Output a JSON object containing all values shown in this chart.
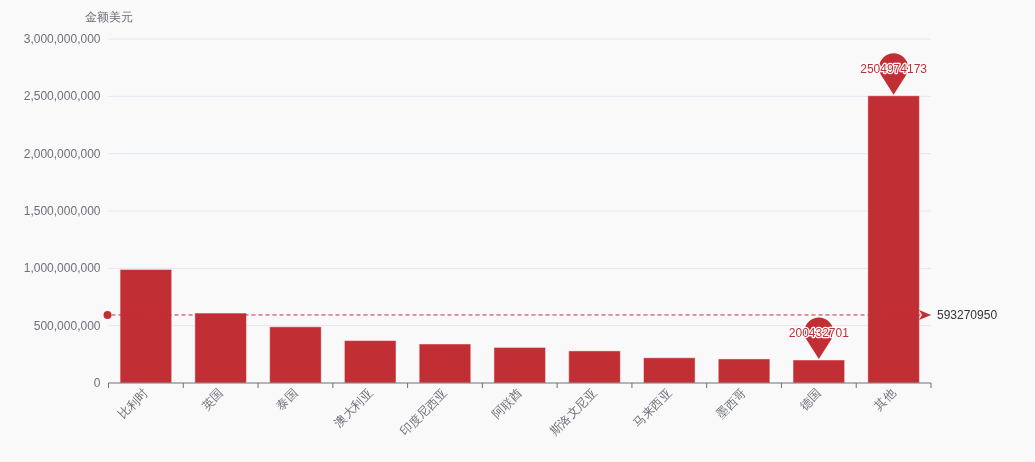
{
  "chart_data": {
    "type": "bar",
    "ylabel": "金额美元",
    "categories": [
      "比利时",
      "英国",
      "泰国",
      "澳大利亚",
      "印度尼西亚",
      "阿联酋",
      "斯洛文尼亚",
      "马来西亚",
      "墨西哥",
      "德国",
      "其他"
    ],
    "values": [
      990000000,
      610000000,
      490000000,
      370000000,
      340000000,
      310000000,
      280000000,
      220000000,
      210000000,
      200432701,
      2504974173
    ],
    "color": "#c12e34",
    "ylim": [
      0,
      3000000000
    ],
    "yticks": [
      0,
      {
        "value": 500000000,
        "label": "500,000,000"
      },
      {
        "value": 1000000000,
        "label": "1,000,000,000"
      },
      {
        "value": 1500000000,
        "label": "1,500,000,000"
      },
      {
        "value": 2000000000,
        "label": "2,000,000,000"
      },
      {
        "value": 2500000000,
        "label": "2,500,000,000"
      },
      {
        "value": 3000000000,
        "label": "3,000,000,000"
      }
    ],
    "grid": "y",
    "ref_lines": [
      {
        "axis": "y",
        "value": 593270950,
        "label": "593270950",
        "color": "#c12e34",
        "line_style": "dashed"
      }
    ],
    "annotations": [
      {
        "text": "2504974173",
        "x": "其他",
        "y": 2504974173
      },
      {
        "text": "200432701",
        "x": "德国",
        "y": 200432701
      }
    ]
  }
}
